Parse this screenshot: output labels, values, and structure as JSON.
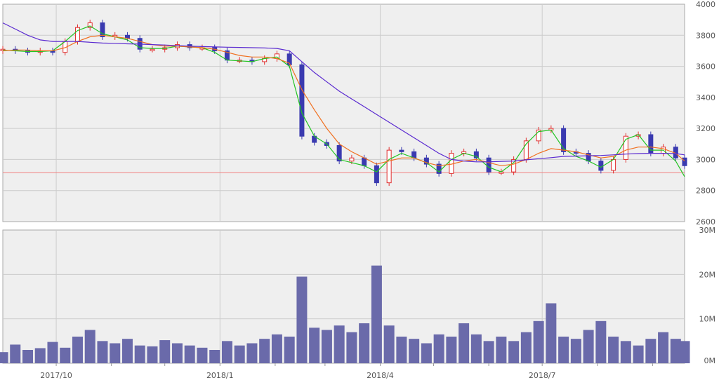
{
  "chart_data": [
    {
      "type": "candlestick",
      "title": "",
      "xlabel": "",
      "ylabel": "",
      "ylim": [
        2600,
        4000
      ],
      "y_ticks": [
        2600,
        2800,
        3000,
        3200,
        3400,
        3600,
        3800,
        4000
      ],
      "x_ticks": [
        "2017/10",
        "2018/1",
        "2018/4",
        "2018/7"
      ],
      "x_range": [
        "2017-09-01",
        "2018-09-19"
      ],
      "grid": true,
      "reference_line": 2915,
      "colors": {
        "up": "#e03030",
        "down": "#3a3ab0",
        "ma_short": "#22c422",
        "ma_mid": "#f07020",
        "ma_long": "#5a2ad0",
        "reference": "#f08080",
        "panel_bg": "#efefef",
        "grid": "#cccccc"
      },
      "price_series": {
        "dates": [
          "2017-09-01",
          "2017-09-08",
          "2017-09-15",
          "2017-09-22",
          "2017-09-29",
          "2017-10-06",
          "2017-10-13",
          "2017-10-20",
          "2017-10-27",
          "2017-11-03",
          "2017-11-10",
          "2017-11-17",
          "2017-11-24",
          "2017-12-01",
          "2017-12-08",
          "2017-12-15",
          "2017-12-22",
          "2017-12-29",
          "2018-01-05",
          "2018-01-12",
          "2018-01-19",
          "2018-01-26",
          "2018-02-02",
          "2018-02-09",
          "2018-02-16",
          "2018-02-23",
          "2018-03-02",
          "2018-03-09",
          "2018-03-16",
          "2018-03-23",
          "2018-03-30",
          "2018-04-06",
          "2018-04-13",
          "2018-04-20",
          "2018-04-27",
          "2018-05-04",
          "2018-05-11",
          "2018-05-18",
          "2018-05-25",
          "2018-06-01",
          "2018-06-08",
          "2018-06-15",
          "2018-06-22",
          "2018-06-29",
          "2018-07-06",
          "2018-07-13",
          "2018-07-20",
          "2018-07-27",
          "2018-08-03",
          "2018-08-10",
          "2018-08-17",
          "2018-08-24",
          "2018-08-31",
          "2018-09-07",
          "2018-09-14",
          "2018-09-19"
        ],
        "close": [
          3710,
          3700,
          3690,
          3700,
          3690,
          3760,
          3850,
          3880,
          3790,
          3800,
          3780,
          3710,
          3710,
          3720,
          3740,
          3720,
          3720,
          3700,
          3640,
          3640,
          3630,
          3650,
          3680,
          3610,
          3150,
          3110,
          3090,
          2990,
          3010,
          2960,
          2850,
          3060,
          3050,
          3010,
          2970,
          2910,
          3040,
          3050,
          3010,
          2920,
          2920,
          3000,
          3120,
          3190,
          3200,
          3050,
          3040,
          2990,
          2930,
          3000,
          3150,
          3160,
          3040,
          3080,
          3010,
          2960
        ]
      },
      "moving_averages": [
        {
          "period": "short",
          "values": [
            3705,
            3700,
            3695,
            3695,
            3700,
            3760,
            3830,
            3860,
            3810,
            3790,
            3770,
            3720,
            3715,
            3715,
            3730,
            3725,
            3720,
            3690,
            3640,
            3635,
            3630,
            3650,
            3660,
            3600,
            3300,
            3150,
            3100,
            3000,
            2980,
            2960,
            2920,
            3000,
            3040,
            3010,
            2980,
            2920,
            3000,
            3040,
            3020,
            2950,
            2920,
            2980,
            3100,
            3180,
            3190,
            3070,
            3020,
            2990,
            2950,
            3000,
            3130,
            3160,
            3060,
            3060,
            2990,
            2890
          ]
        },
        {
          "period": "mid",
          "values": [
            3700,
            3705,
            3705,
            3700,
            3700,
            3720,
            3760,
            3790,
            3800,
            3790,
            3780,
            3760,
            3740,
            3730,
            3730,
            3725,
            3720,
            3710,
            3690,
            3670,
            3660,
            3660,
            3650,
            3620,
            3450,
            3320,
            3200,
            3100,
            3050,
            3010,
            2970,
            2990,
            3010,
            3010,
            2980,
            2960,
            2970,
            2990,
            3000,
            2980,
            2960,
            2970,
            3000,
            3040,
            3070,
            3060,
            3050,
            3030,
            3010,
            3020,
            3060,
            3080,
            3080,
            3070,
            3040,
            2990
          ]
        },
        {
          "period": "long",
          "values": [
            3880,
            3840,
            3800,
            3770,
            3760,
            3760,
            3760,
            3755,
            3750,
            3748,
            3745,
            3743,
            3740,
            3737,
            3733,
            3730,
            3727,
            3725,
            3723,
            3722,
            3720,
            3718,
            3715,
            3700,
            3630,
            3560,
            3500,
            3440,
            3390,
            3340,
            3290,
            3240,
            3190,
            3140,
            3090,
            3040,
            3000,
            2990,
            2985,
            2985,
            2988,
            2990,
            2998,
            3005,
            3012,
            3020,
            3022,
            3024,
            3026,
            3030,
            3035,
            3038,
            3040,
            3040,
            3038,
            3030
          ]
        }
      ]
    },
    {
      "type": "bar",
      "title": "",
      "ylabel": "",
      "ylim": [
        0,
        30
      ],
      "y_ticks": [
        0,
        10,
        20,
        30
      ],
      "y_tick_labels": [
        "0M",
        "10M",
        "20M",
        "30M"
      ],
      "unit": "M",
      "x_range": [
        "2017-09-01",
        "2018-09-19"
      ],
      "bar_color": "#6a6aaa",
      "values": [
        2.5,
        4.2,
        3.0,
        3.4,
        4.8,
        3.5,
        6.0,
        7.5,
        5.0,
        4.5,
        5.5,
        4.0,
        3.8,
        5.2,
        4.5,
        4.0,
        3.5,
        3.0,
        5.0,
        4.0,
        4.5,
        5.5,
        6.5,
        6.0,
        19.5,
        8.0,
        7.5,
        8.5,
        7.0,
        9.0,
        22.0,
        8.5,
        6.0,
        5.5,
        4.5,
        6.5,
        6.0,
        9.0,
        6.5,
        5.0,
        6.0,
        5.0,
        7.0,
        9.5,
        13.5,
        6.0,
        5.5,
        7.5,
        9.5,
        6.0,
        5.0,
        4.0,
        5.5,
        7.0,
        5.5,
        5.0
      ]
    }
  ],
  "price_axis_labels": [
    "4000",
    "3800",
    "3600",
    "3400",
    "3200",
    "3000",
    "2800",
    "2600"
  ],
  "volume_axis_labels": [
    "30M",
    "20M",
    "10M",
    "0M"
  ],
  "date_labels": [
    "2017/10",
    "2018/1",
    "2018/4",
    "2018/7"
  ]
}
